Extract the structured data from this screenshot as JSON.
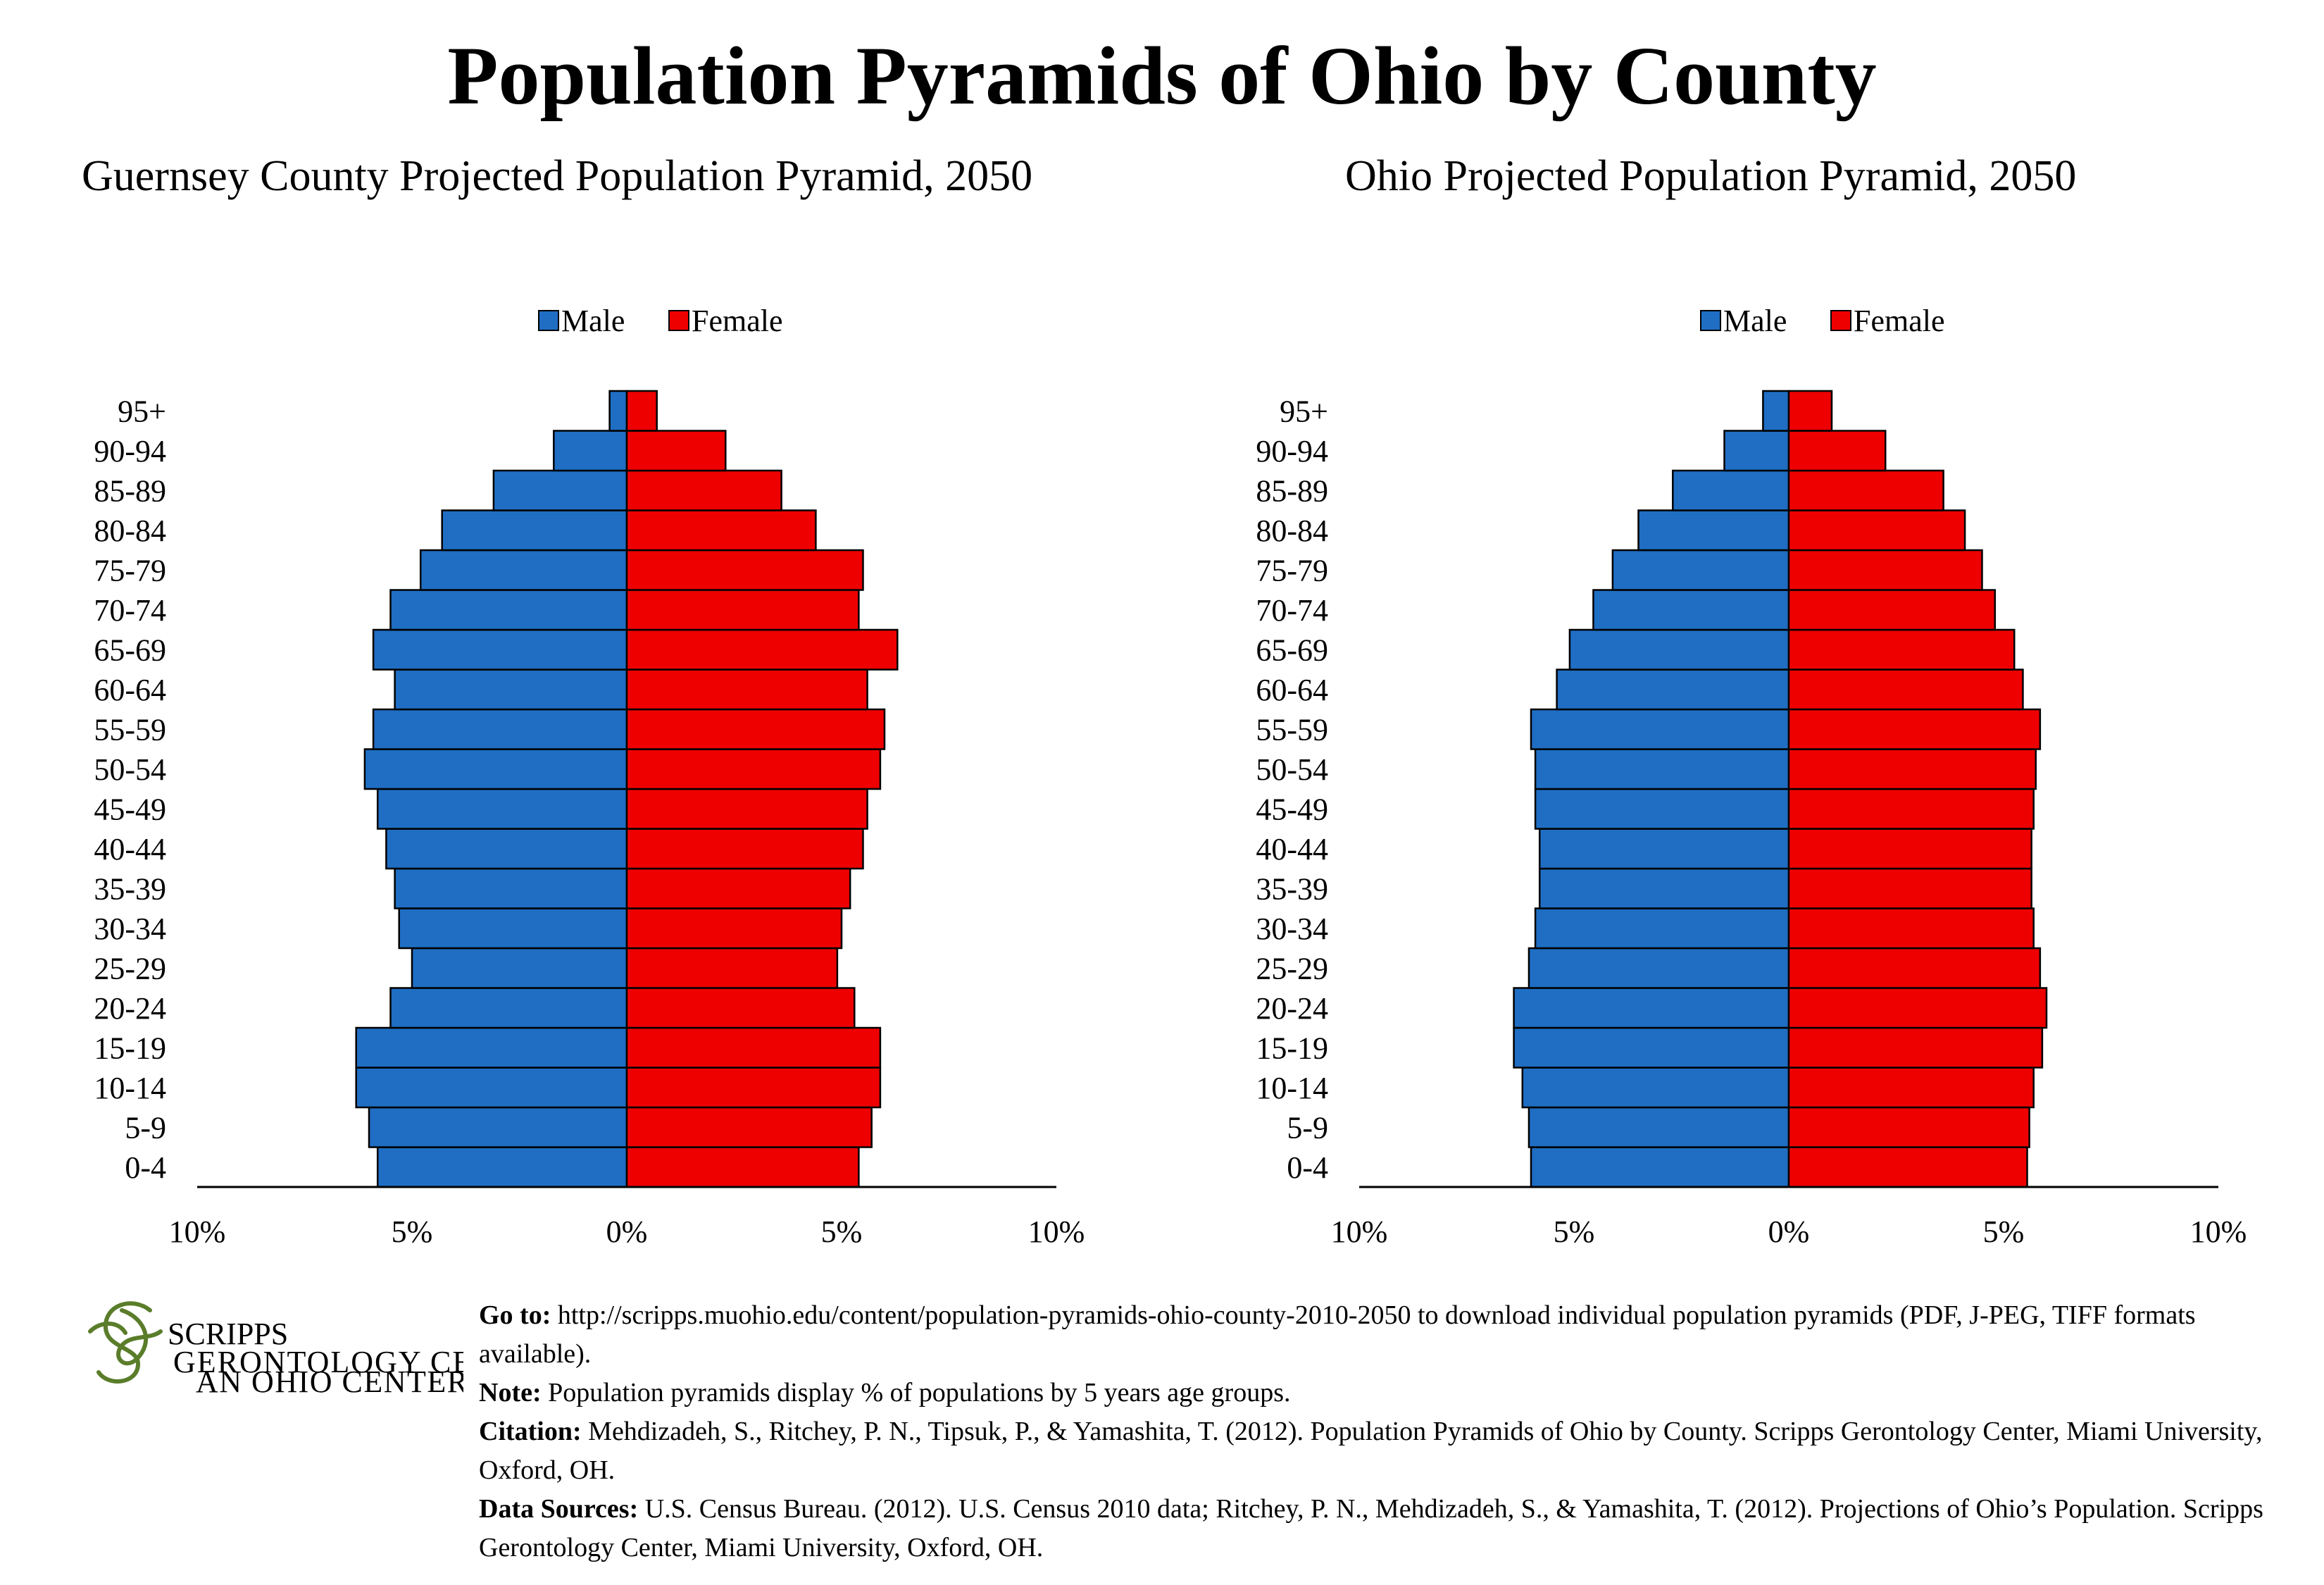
{
  "page": {
    "title": "Population Pyramids of Ohio by County"
  },
  "colors": {
    "male": "#1f6ec3",
    "female": "#ee0000"
  },
  "chart_data": [
    {
      "type": "bar",
      "orientation": "horizontal-pyramid",
      "title": "Guernsey County Projected Population Pyramid, 2050",
      "categories": [
        "0-4",
        "5-9",
        "10-14",
        "15-19",
        "20-24",
        "25-29",
        "30-34",
        "35-39",
        "40-44",
        "45-49",
        "50-54",
        "55-59",
        "60-64",
        "65-69",
        "70-74",
        "75-79",
        "80-84",
        "85-89",
        "90-94",
        "95+"
      ],
      "series": [
        {
          "name": "Male",
          "values": [
            5.8,
            6.0,
            6.3,
            6.3,
            5.5,
            5.0,
            5.3,
            5.4,
            5.6,
            5.8,
            6.1,
            5.9,
            5.4,
            5.9,
            5.5,
            4.8,
            4.3,
            3.1,
            1.7,
            0.4
          ]
        },
        {
          "name": "Female",
          "values": [
            5.4,
            5.7,
            5.9,
            5.9,
            5.3,
            4.9,
            5.0,
            5.2,
            5.5,
            5.6,
            5.9,
            6.0,
            5.6,
            6.3,
            5.4,
            5.5,
            4.4,
            3.6,
            2.3,
            0.7
          ]
        }
      ],
      "xlim": [
        -10,
        10
      ],
      "xticks": [
        "10%",
        "5%",
        "0%",
        "5%",
        "10%"
      ],
      "legend": "top-center"
    },
    {
      "type": "bar",
      "orientation": "horizontal-pyramid",
      "title": "Ohio Projected Population Pyramid, 2050",
      "categories": [
        "0-4",
        "5-9",
        "10-14",
        "15-19",
        "20-24",
        "25-29",
        "30-34",
        "35-39",
        "40-44",
        "45-49",
        "50-54",
        "55-59",
        "60-64",
        "65-69",
        "70-74",
        "75-79",
        "80-84",
        "85-89",
        "90-94",
        "95+"
      ],
      "series": [
        {
          "name": "Male",
          "values": [
            6.0,
            6.05,
            6.2,
            6.4,
            6.4,
            6.05,
            5.9,
            5.8,
            5.8,
            5.9,
            5.9,
            6.0,
            5.4,
            5.1,
            4.55,
            4.1,
            3.5,
            2.7,
            1.5,
            0.6
          ]
        },
        {
          "name": "Female",
          "values": [
            5.55,
            5.6,
            5.7,
            5.9,
            6.0,
            5.85,
            5.7,
            5.65,
            5.65,
            5.7,
            5.75,
            5.85,
            5.45,
            5.25,
            4.8,
            4.5,
            4.1,
            3.6,
            2.25,
            1.0
          ]
        }
      ],
      "xlim": [
        -10,
        10
      ],
      "xticks": [
        "10%",
        "5%",
        "0%",
        "5%",
        "10%"
      ],
      "legend": "top-center"
    }
  ],
  "footer": {
    "logo": {
      "name": "SCRIPPS",
      "sub": "GERONTOLOGY CENTER",
      "tagline": "AN OHIO CENTER OF EXCELLENCE"
    },
    "goto_label": "Go to:",
    "goto_text": " http://scripps.muohio.edu/content/population-pyramids-ohio-county-2010-2050 to download individual population pyramids (PDF, J-PEG, TIFF formats available).",
    "note_label": "Note:",
    "note_text": " Population pyramids display % of populations by 5 years age groups.",
    "citation_label": "Citation:",
    "citation_text": " Mehdizadeh, S., Ritchey, P. N., Tipsuk, P., & Yamashita, T. (2012). Population Pyramids of Ohio by County. Scripps Gerontology Center, Miami University, Oxford, OH.",
    "sources_label": "Data Sources:",
    "sources_text": " U.S. Census Bureau. (2012). U.S. Census 2010 data; Ritchey, P. N., Mehdizadeh, S., & Yamashita, T. (2012). Projections of Ohio’s Population. Scripps Gerontology Center, Miami University, Oxford, OH."
  }
}
